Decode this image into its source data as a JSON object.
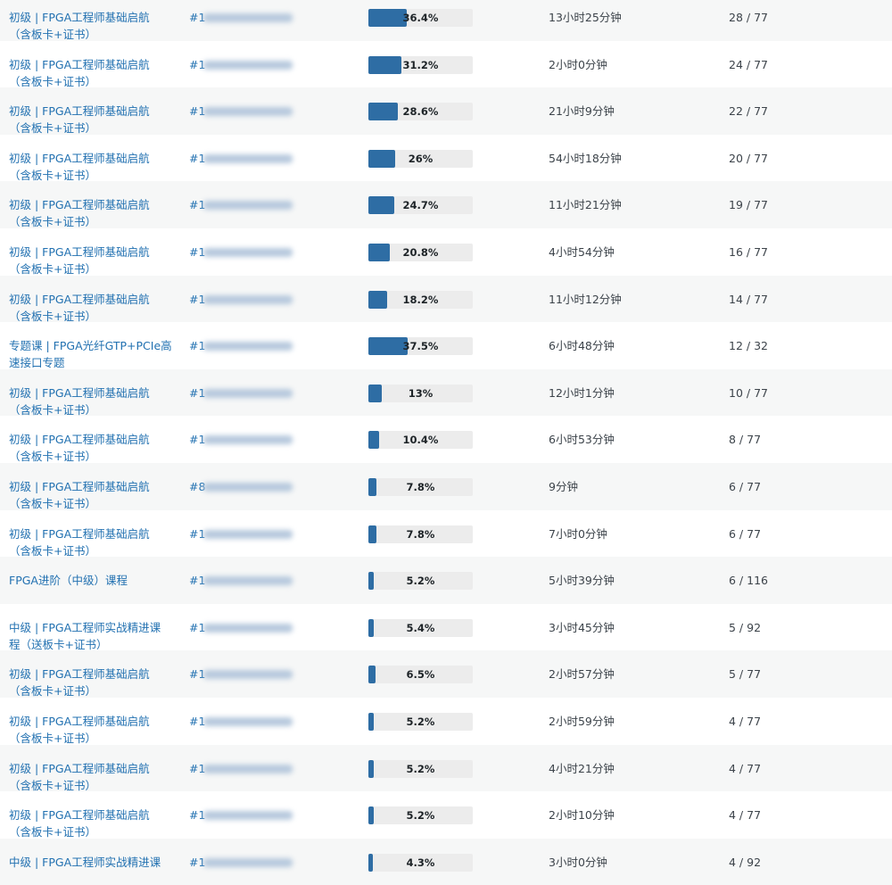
{
  "table": {
    "rows": [
      {
        "course": [
          "初级 | FPGA工程师基础启航",
          "（含板卡+证书）"
        ],
        "order": "#1",
        "progress": {
          "value": 36.4,
          "label": "36.4%"
        },
        "time": "13小时25分钟",
        "count": "28 / 77"
      },
      {
        "course": [
          "初级 | FPGA工程师基础启航",
          "（含板卡+证书）"
        ],
        "order": "#1",
        "progress": {
          "value": 31.2,
          "label": "31.2%"
        },
        "time": "2小时0分钟",
        "count": "24 / 77"
      },
      {
        "course": [
          "初级 | FPGA工程师基础启航",
          "（含板卡+证书）"
        ],
        "order": "#1",
        "progress": {
          "value": 28.6,
          "label": "28.6%"
        },
        "time": "21小时9分钟",
        "count": "22 / 77"
      },
      {
        "course": [
          "初级 | FPGA工程师基础启航",
          "（含板卡+证书）"
        ],
        "order": "#1",
        "progress": {
          "value": 26,
          "label": "26%"
        },
        "time": "54小时18分钟",
        "count": "20 / 77"
      },
      {
        "course": [
          "初级 | FPGA工程师基础启航",
          "（含板卡+证书）"
        ],
        "order": "#1",
        "progress": {
          "value": 24.7,
          "label": "24.7%"
        },
        "time": "11小时21分钟",
        "count": "19 / 77"
      },
      {
        "course": [
          "初级 | FPGA工程师基础启航",
          "（含板卡+证书）"
        ],
        "order": "#1",
        "progress": {
          "value": 20.8,
          "label": "20.8%"
        },
        "time": "4小时54分钟",
        "count": "16 / 77"
      },
      {
        "course": [
          "初级 | FPGA工程师基础启航",
          "（含板卡+证书）"
        ],
        "order": "#1",
        "progress": {
          "value": 18.2,
          "label": "18.2%"
        },
        "time": "11小时12分钟",
        "count": "14 / 77"
      },
      {
        "course": [
          "专题课 | FPGA光纤GTP+PCIe高",
          "速接口专题"
        ],
        "order": "#1",
        "progress": {
          "value": 37.5,
          "label": "37.5%"
        },
        "time": "6小时48分钟",
        "count": "12 / 32"
      },
      {
        "course": [
          "初级 | FPGA工程师基础启航",
          "（含板卡+证书）"
        ],
        "order": "#1",
        "progress": {
          "value": 13,
          "label": "13%"
        },
        "time": "12小时1分钟",
        "count": "10 / 77"
      },
      {
        "course": [
          "初级 | FPGA工程师基础启航",
          "（含板卡+证书）"
        ],
        "order": "#1",
        "progress": {
          "value": 10.4,
          "label": "10.4%"
        },
        "time": "6小时53分钟",
        "count": "8 / 77"
      },
      {
        "course": [
          "初级 | FPGA工程师基础启航",
          "（含板卡+证书）"
        ],
        "order": "#8",
        "progress": {
          "value": 7.8,
          "label": "7.8%"
        },
        "time": "9分钟",
        "count": "6 / 77"
      },
      {
        "course": [
          "初级 | FPGA工程师基础启航",
          "（含板卡+证书）"
        ],
        "order": "#1",
        "progress": {
          "value": 7.8,
          "label": "7.8%"
        },
        "time": "7小时0分钟",
        "count": "6 / 77"
      },
      {
        "course": [
          "FPGA进阶（中级）课程"
        ],
        "order": "#1",
        "progress": {
          "value": 5.2,
          "label": "5.2%"
        },
        "time": "5小时39分钟",
        "count": "6 / 116"
      },
      {
        "course": [
          "中级 | FPGA工程师实战精进课",
          "程（送板卡+证书）"
        ],
        "order": "#1",
        "progress": {
          "value": 5.4,
          "label": "5.4%"
        },
        "time": "3小时45分钟",
        "count": "5 / 92"
      },
      {
        "course": [
          "初级 | FPGA工程师基础启航",
          "（含板卡+证书）"
        ],
        "order": "#1",
        "progress": {
          "value": 6.5,
          "label": "6.5%"
        },
        "time": "2小时57分钟",
        "count": "5 / 77"
      },
      {
        "course": [
          "初级 | FPGA工程师基础启航",
          "（含板卡+证书）"
        ],
        "order": "#1",
        "progress": {
          "value": 5.2,
          "label": "5.2%"
        },
        "time": "2小时59分钟",
        "count": "4 / 77"
      },
      {
        "course": [
          "初级 | FPGA工程师基础启航",
          "（含板卡+证书）"
        ],
        "order": "#1",
        "progress": {
          "value": 5.2,
          "label": "5.2%"
        },
        "time": "4小时21分钟",
        "count": "4 / 77"
      },
      {
        "course": [
          "初级 | FPGA工程师基础启航",
          "（含板卡+证书）"
        ],
        "order": "#1",
        "progress": {
          "value": 5.2,
          "label": "5.2%"
        },
        "time": "2小时10分钟",
        "count": "4 / 77"
      },
      {
        "course": [
          "中级 | FPGA工程师实战精进课"
        ],
        "order": "#1",
        "progress": {
          "value": 4.3,
          "label": "4.3%"
        },
        "time": "3小时0分钟",
        "count": "4 / 92"
      }
    ]
  }
}
